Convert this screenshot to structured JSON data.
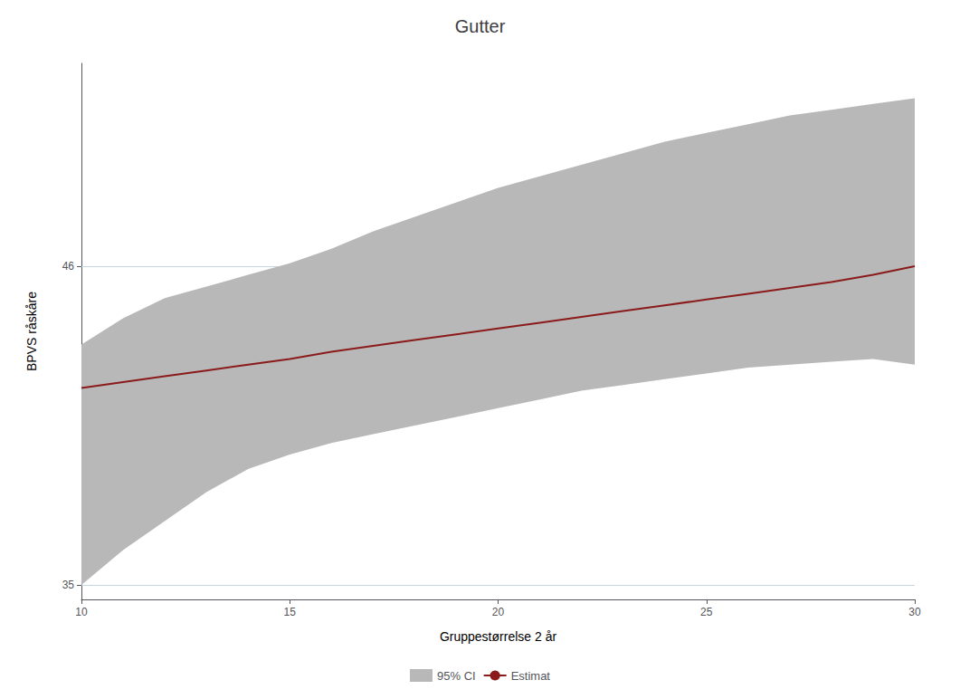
{
  "chart_data": {
    "type": "line",
    "title": "Gutter",
    "xlabel": "Gruppestørrelse 2 år",
    "ylabel": "BPVS råskåre",
    "x": [
      10,
      11,
      12,
      13,
      14,
      15,
      16,
      17,
      18,
      19,
      20,
      21,
      22,
      23,
      24,
      25,
      26,
      27,
      28,
      29,
      30
    ],
    "series": [
      {
        "name": "Estimat",
        "color": "#8b1a1a",
        "values": [
          41.8,
          42.0,
          42.2,
          42.4,
          42.6,
          42.8,
          43.05,
          43.25,
          43.45,
          43.65,
          43.85,
          44.05,
          44.25,
          44.45,
          44.65,
          44.85,
          45.05,
          45.25,
          45.45,
          45.7,
          46.0
        ]
      }
    ],
    "ci": {
      "name": "95% CI",
      "color": "#b8b8b8",
      "upper": [
        43.3,
        44.2,
        44.9,
        45.3,
        45.7,
        46.1,
        46.6,
        47.2,
        47.7,
        48.2,
        48.7,
        49.1,
        49.5,
        49.9,
        50.3,
        50.6,
        50.9,
        51.2,
        51.4,
        51.6,
        51.8
      ],
      "lower": [
        35.0,
        36.2,
        37.2,
        38.2,
        39.0,
        39.5,
        39.9,
        40.2,
        40.5,
        40.8,
        41.1,
        41.4,
        41.7,
        41.9,
        42.1,
        42.3,
        42.5,
        42.6,
        42.7,
        42.8,
        42.6
      ]
    },
    "xlim": [
      10,
      30
    ],
    "xticks": [
      10,
      15,
      20,
      25,
      30
    ],
    "ylim": [
      34.5,
      53
    ],
    "yticks": [
      35,
      46
    ],
    "grid": true,
    "legend": "bottom"
  }
}
